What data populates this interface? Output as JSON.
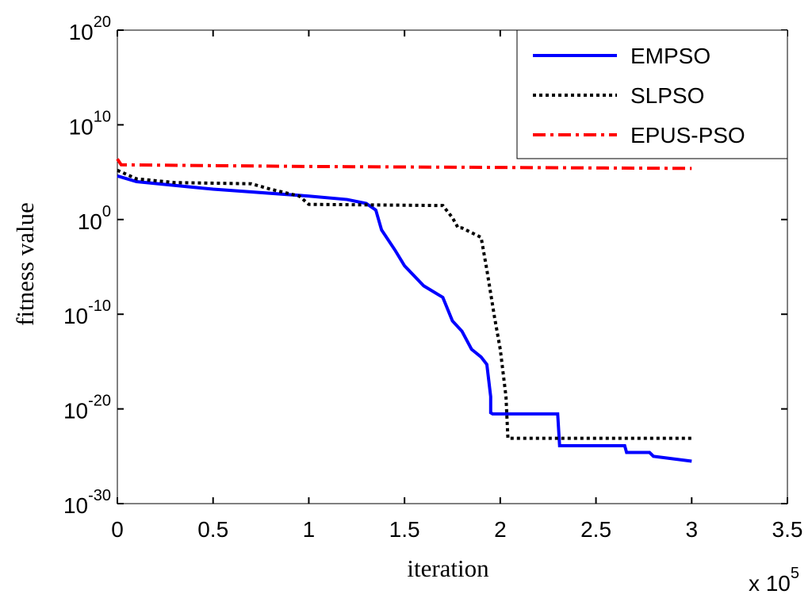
{
  "chart_data": {
    "type": "line",
    "x_label": "iteration",
    "y_label": "fitness value",
    "x_multiplier": "x 10^5",
    "ylog": true,
    "xlim": [
      0,
      3.5
    ],
    "xticks": [
      0,
      0.5,
      1,
      1.5,
      2,
      2.5,
      3,
      3.5
    ],
    "ylim": [
      1e-30,
      1e+20
    ],
    "yticks": [
      {
        "value": 1e-30,
        "label": "10^-30"
      },
      {
        "value": 1e-20,
        "label": "10^-20"
      },
      {
        "value": 1e-10,
        "label": "10^-10"
      },
      {
        "value": 1,
        "label": "10^0"
      },
      {
        "value": 10000000000.0,
        "label": "10^10"
      },
      {
        "value": 1e+20,
        "label": "10^20"
      }
    ],
    "legend": "top-right",
    "series": [
      {
        "name": "EMPSO",
        "color": "#0000ff",
        "style": "solid",
        "x": [
          0,
          0.1,
          0.5,
          1.0,
          1.2,
          1.3,
          1.35,
          1.38,
          1.45,
          1.5,
          1.6,
          1.7,
          1.75,
          1.8,
          1.85,
          1.9,
          1.93,
          1.95,
          1.95,
          1.96,
          2.3,
          2.31,
          2.65,
          2.66,
          2.78,
          2.8,
          3.0
        ],
        "values": [
          40000.0,
          10000.0,
          1600.0,
          300.0,
          130.0,
          50,
          10,
          0.08,
          0.0006,
          1.3e-05,
          1e-07,
          6e-09,
          2e-11,
          1.6e-12,
          2e-14,
          3e-15,
          5e-16,
          2e-19,
          4e-21,
          3e-21,
          3e-21,
          1.3e-24,
          1.3e-24,
          2.5e-25,
          2.5e-25,
          1e-25,
          3e-26
        ]
      },
      {
        "name": "SLPSO",
        "color": "#000000",
        "style": "dotted",
        "x": [
          0,
          0.1,
          0.3,
          0.7,
          0.8,
          0.95,
          1.0,
          1.7,
          1.75,
          1.78,
          1.8,
          1.9,
          1.93,
          1.97,
          2.0,
          2.03,
          2.04,
          3.0
        ],
        "values": [
          160000.0,
          20000.0,
          8000.0,
          6000.0,
          1600.0,
          300.0,
          40,
          30,
          1.6,
          0.13,
          0.13,
          0.013,
          5e-06,
          5e-11,
          2e-14,
          2e-19,
          8e-24,
          8e-24
        ]
      },
      {
        "name": "EPUS-PSO",
        "color": "#ff0000",
        "style": "dashdot",
        "x": [
          0,
          0.02,
          1.0,
          3.0
        ],
        "values": [
          2500000.0,
          600000.0,
          400000.0,
          250000.0
        ]
      }
    ]
  }
}
